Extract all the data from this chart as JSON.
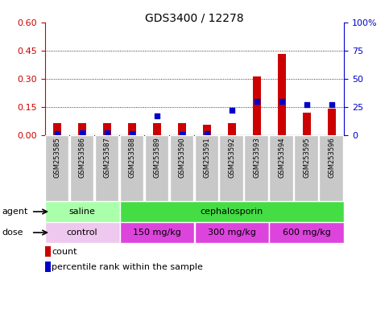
{
  "title": "GDS3400 / 12278",
  "samples": [
    "GSM253585",
    "GSM253586",
    "GSM253587",
    "GSM253588",
    "GSM253589",
    "GSM253590",
    "GSM253591",
    "GSM253592",
    "GSM253593",
    "GSM253594",
    "GSM253595",
    "GSM253596"
  ],
  "count_values": [
    0.065,
    0.065,
    0.065,
    0.065,
    0.065,
    0.065,
    0.055,
    0.065,
    0.315,
    0.435,
    0.12,
    0.14
  ],
  "percentile_values": [
    1.5,
    2.0,
    2.0,
    1.5,
    17.0,
    1.0,
    1.5,
    22.0,
    30.0,
    30.0,
    27.0,
    27.0
  ],
  "ylim_left": [
    0,
    0.6
  ],
  "ylim_right": [
    0,
    100
  ],
  "yticks_left": [
    0,
    0.15,
    0.3,
    0.45,
    0.6
  ],
  "yticks_right": [
    0,
    25,
    50,
    75,
    100
  ],
  "bar_color": "#cc0000",
  "dot_color": "#0000cc",
  "cell_bg": "#c8c8c8",
  "cell_border": "#ffffff",
  "agent_saline_color": "#aaffaa",
  "agent_ceph_color": "#44dd44",
  "dose_control_color": "#eec8ee",
  "dose_mg_color": "#dd44dd",
  "agent_groups": [
    {
      "label": "saline",
      "start": 0,
      "end": 3
    },
    {
      "label": "cephalosporin",
      "start": 3,
      "end": 12
    }
  ],
  "dose_groups": [
    {
      "label": "control",
      "start": 0,
      "end": 3
    },
    {
      "label": "150 mg/kg",
      "start": 3,
      "end": 6
    },
    {
      "label": "300 mg/kg",
      "start": 6,
      "end": 9
    },
    {
      "label": "600 mg/kg",
      "start": 9,
      "end": 12
    }
  ],
  "legend_count_label": "count",
  "legend_pct_label": "percentile rank within the sample",
  "agent_label": "agent",
  "dose_label": "dose",
  "bar_width": 0.35
}
